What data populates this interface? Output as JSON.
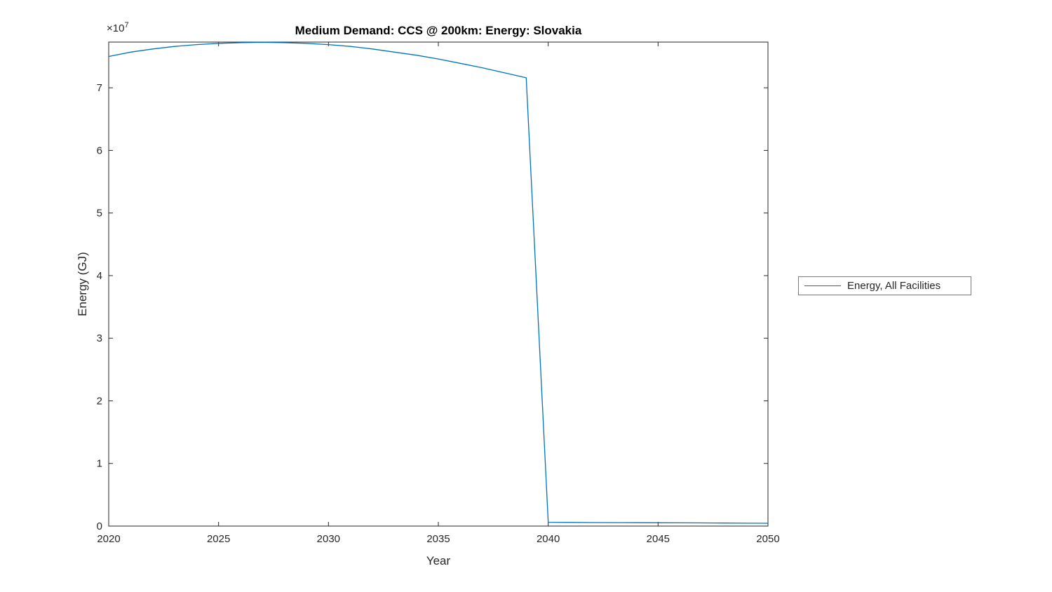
{
  "chart_data": {
    "type": "line",
    "title": "Medium Demand: CCS @ 200km: Energy: Slovakia",
    "xlabel": "Year",
    "ylabel": "Energy (GJ)",
    "multiplier": {
      "base": "×10",
      "exp": "7"
    },
    "legend": [
      {
        "label": "Energy, All Facilities"
      }
    ],
    "legend_position": "right-outside",
    "grid": false,
    "box": true,
    "xlim": [
      2020,
      2050
    ],
    "ylim": [
      0,
      77300000
    ],
    "xticks": [
      2020,
      2025,
      2030,
      2035,
      2040,
      2045,
      2050
    ],
    "xtick_labels": [
      "2020",
      "2025",
      "2030",
      "2035",
      "2040",
      "2045",
      "2050"
    ],
    "yticks": [
      0,
      10000000,
      20000000,
      30000000,
      40000000,
      50000000,
      60000000,
      70000000
    ],
    "ytick_labels": [
      "0",
      "1",
      "2",
      "3",
      "4",
      "5",
      "6",
      "7"
    ],
    "x": [
      2020,
      2021,
      2022,
      2023,
      2024,
      2025,
      2026,
      2027,
      2028,
      2029,
      2030,
      2031,
      2032,
      2033,
      2034,
      2035,
      2036,
      2037,
      2038,
      2039,
      2040,
      2041,
      2042,
      2043,
      2044,
      2045,
      2046,
      2047,
      2048,
      2049,
      2050
    ],
    "y": [
      75000000,
      75700000,
      76200000,
      76600000,
      76900000,
      77100000,
      77200000,
      77250000,
      77200000,
      77100000,
      76900000,
      76600000,
      76200000,
      75700000,
      75200000,
      74600000,
      73900000,
      73200000,
      72400000,
      71600000,
      600000,
      580000,
      560000,
      550000,
      540000,
      530000,
      510000,
      500000,
      480000,
      460000,
      450000
    ],
    "series_name": "Energy, All Facilities",
    "colors": {
      "line": "#0072BD",
      "axis": "#262626",
      "text": "#262626",
      "title": "#000000"
    }
  }
}
